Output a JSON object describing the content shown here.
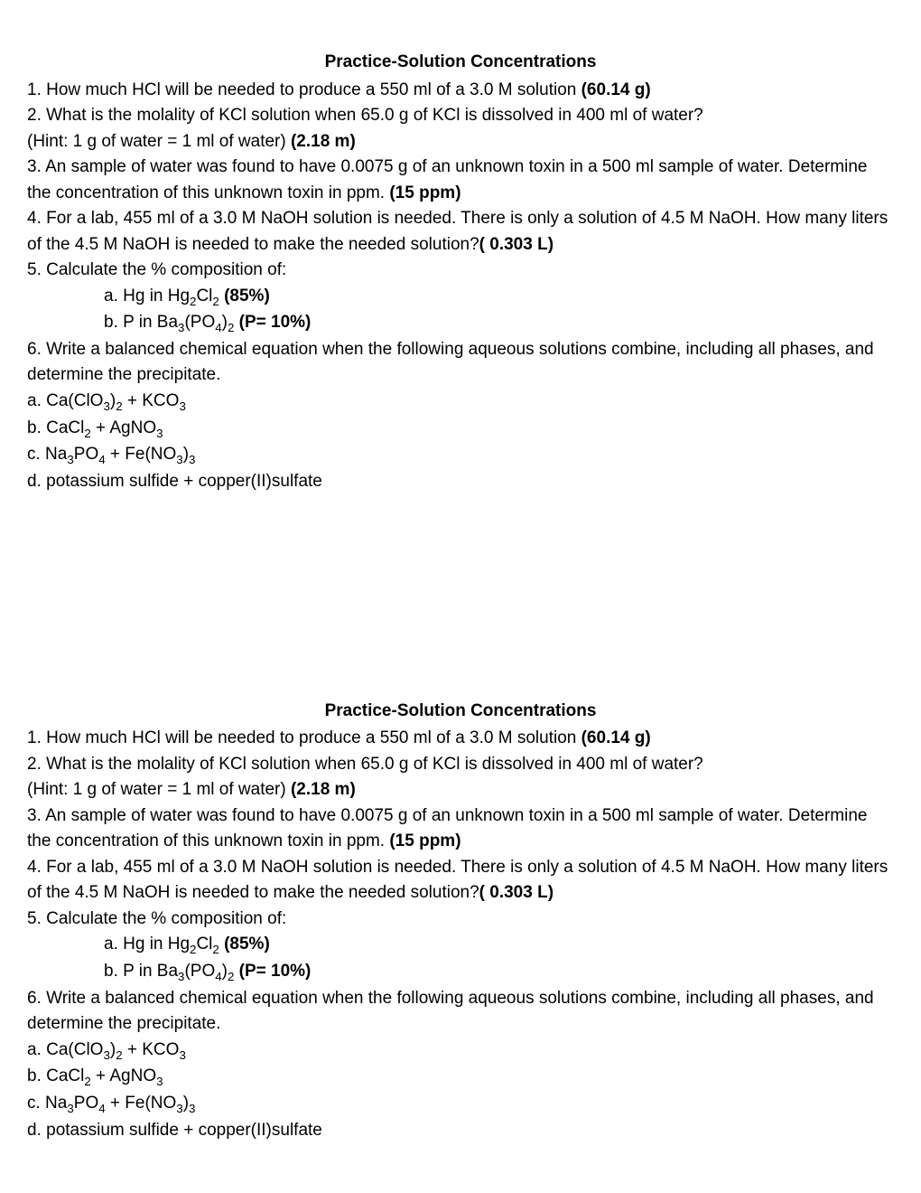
{
  "section1": {
    "title": "Practice-Solution Concentrations",
    "q1_text": "1.  How much HCl will be needed to produce a 550 ml of a 3.0 M solution ",
    "q1_answer": "(60.14 g)",
    "q2_text": "2.   What is the molality of KCl solution when 65.0 g of KCl is dissolved in 400 ml of water?",
    "q2_hint": "(Hint: 1 g of water = 1 ml of water) ",
    "q2_answer": "(2.18 m)",
    "q3_text": "3.  An sample of water was found to have 0.0075 g of an unknown toxin in a 500 ml sample of water.  Determine the concentration of this unknown toxin in ppm. ",
    "q3_answer": "(15 ppm)",
    "q4_text": "4.   For a lab, 455 ml of a 3.0 M NaOH solution is needed.  There is only a solution of 4.5 M NaOH. How many liters of the 4.5 M NaOH is needed to make the needed solution?",
    "q4_answer": "( 0.303 L)",
    "q5_text": "5.  Calculate the % composition of:",
    "q5a_prefix": "a.  Hg in Hg",
    "q5a_sub1": "2",
    "q5a_mid": "Cl",
    "q5a_sub2": "2",
    "q5a_answer": "  (85%)",
    "q5b_prefix": "b.  P in Ba",
    "q5b_sub1": "3",
    "q5b_mid1": "(PO",
    "q5b_sub2": "4",
    "q5b_mid2": ")",
    "q5b_sub3": "2",
    "q5b_answer": " (P=  10%)",
    "q6_text": "6.  Write a balanced chemical equation when the following aqueous solutions combine, including all phases, and determine the precipitate.",
    "q6a_p1": "a.  Ca(ClO",
    "q6a_s1": "3",
    "q6a_p2": ")",
    "q6a_s2": "2",
    "q6a_p3": "  +  KCO",
    "q6a_s3": "3",
    "q6b_p1": "b. CaCl",
    "q6b_s1": "2",
    "q6b_p2": "  +  AgNO",
    "q6b_s2": "3",
    "q6c_p1": "c.  Na",
    "q6c_s1": "3",
    "q6c_p2": "PO",
    "q6c_s2": "4",
    "q6c_p3": " + Fe(NO",
    "q6c_s3": "3",
    "q6c_p4": ")",
    "q6c_s4": "3",
    "q6d_text": "d.  potassium sulfide  +  copper(II)sulfate"
  }
}
